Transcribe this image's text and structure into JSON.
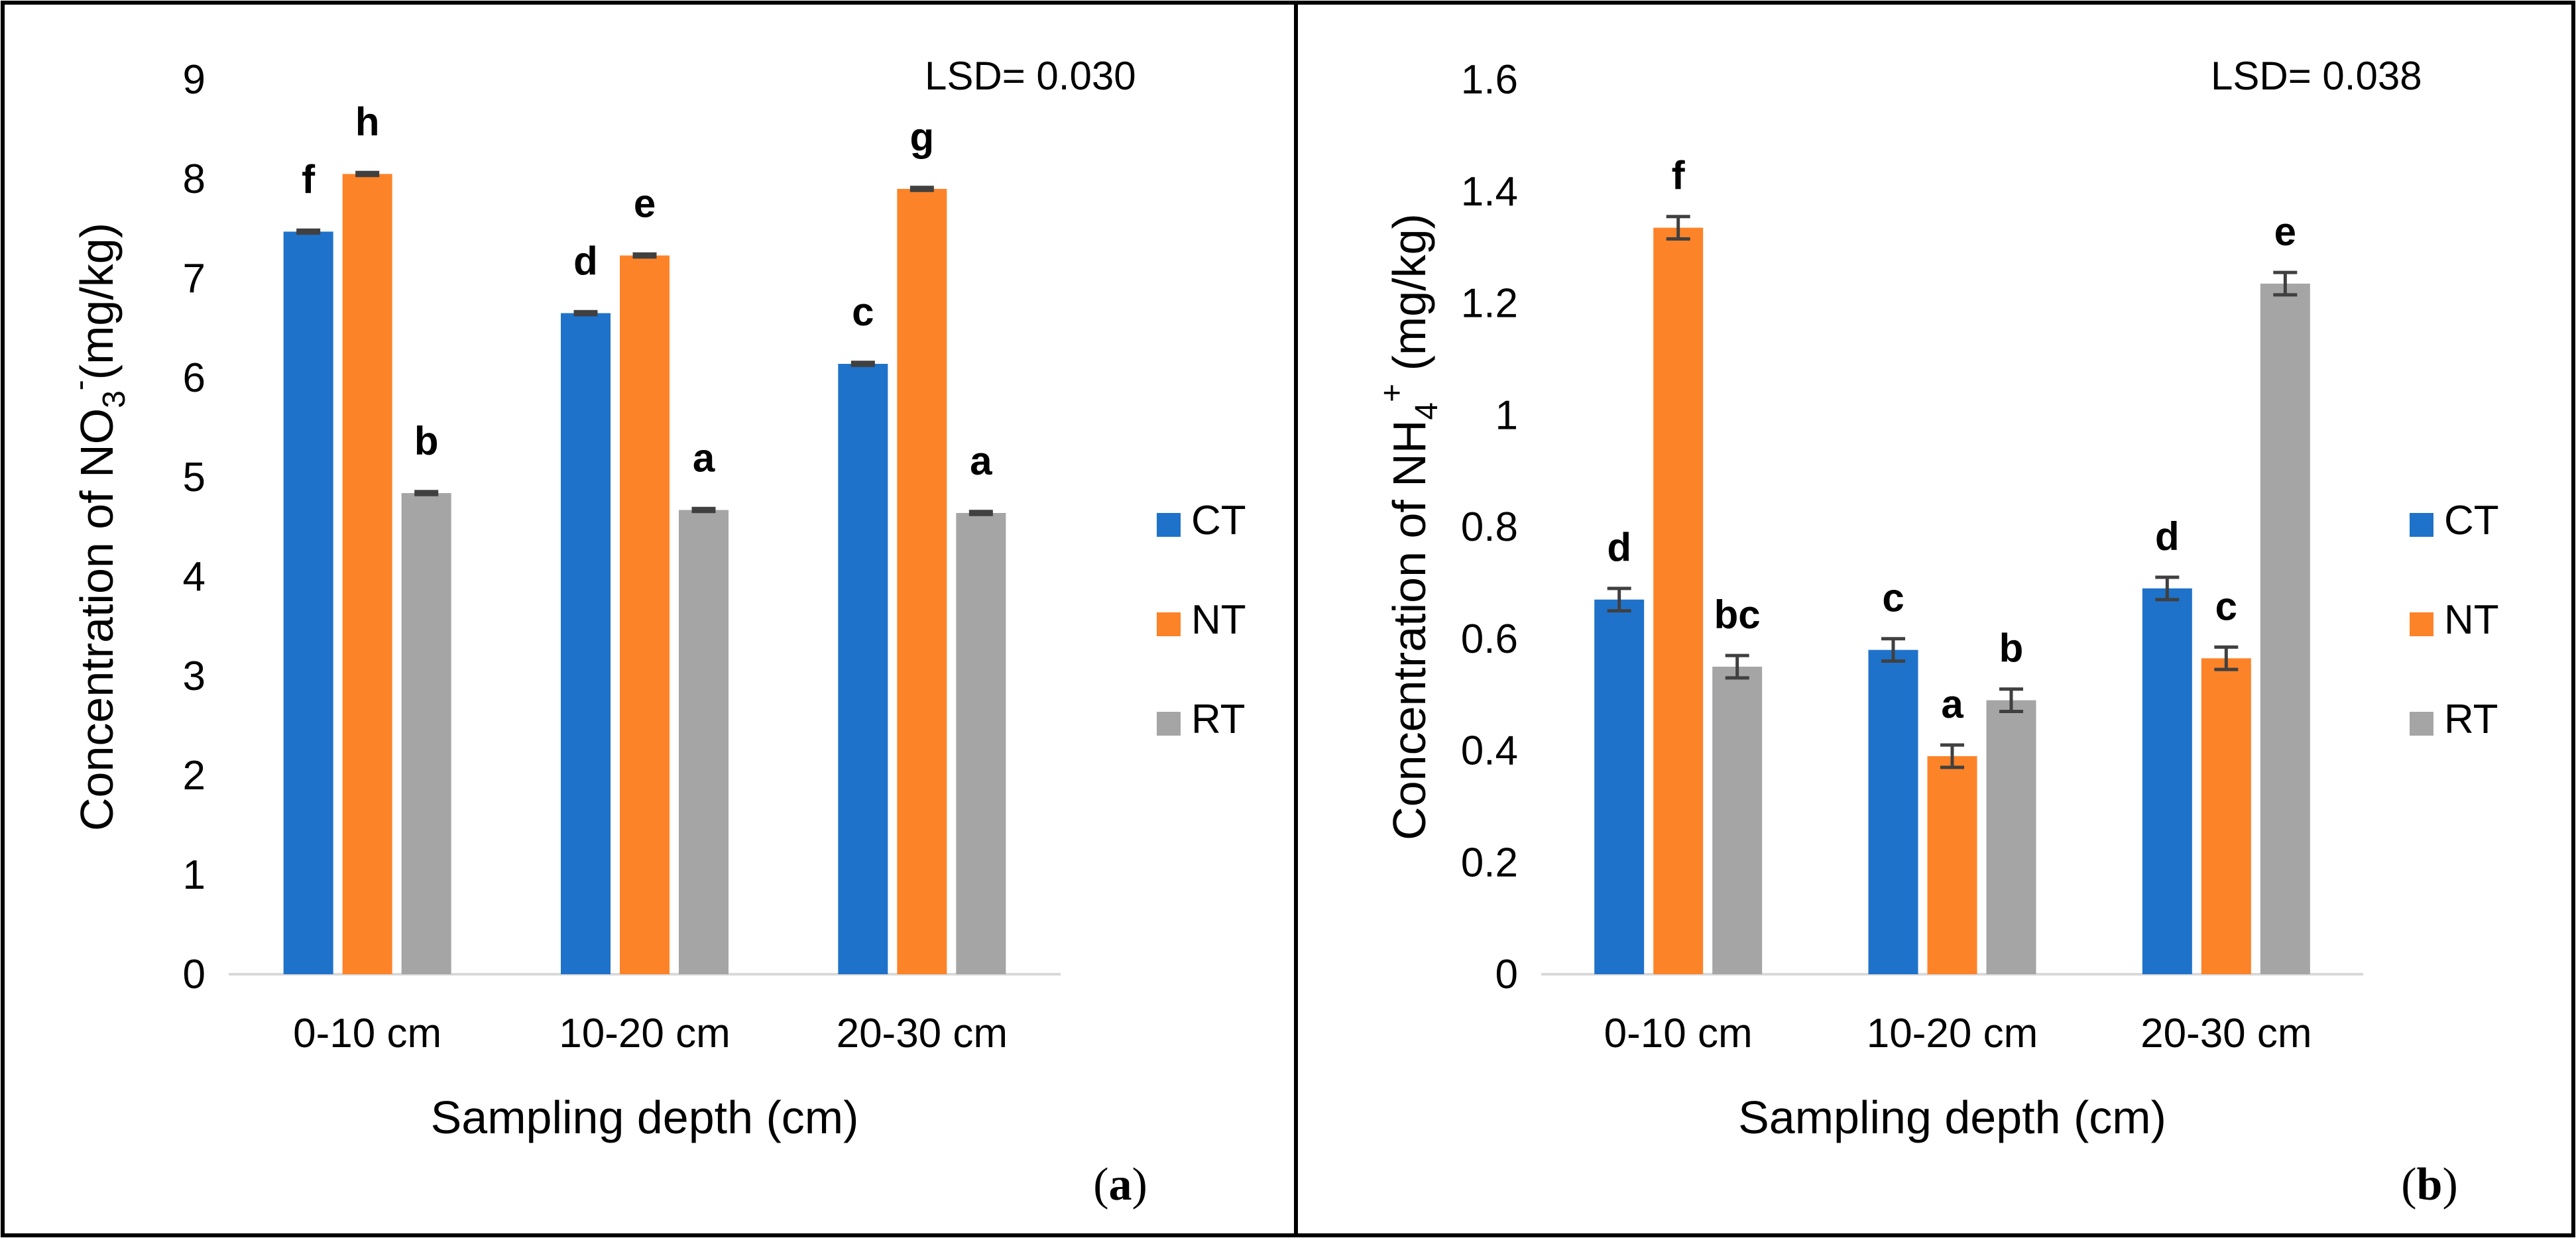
{
  "colors": {
    "CT": "#1f72c9",
    "NT": "#fd8329",
    "RT": "#a5a5a5",
    "errorbar": "#404040",
    "frame": "#000000"
  },
  "chart_data": [
    {
      "type": "bar",
      "panel": "(a)",
      "panel_letter": "a",
      "categories": [
        "0-10 cm",
        "10-20 cm",
        "20-30 cm"
      ],
      "series": [
        {
          "name": "CT",
          "values": [
            7.47,
            6.65,
            6.14
          ],
          "errors": [
            0.015,
            0.015,
            0.015
          ],
          "labels": [
            "f",
            "d",
            "c"
          ]
        },
        {
          "name": "NT",
          "values": [
            8.05,
            7.23,
            7.9
          ],
          "errors": [
            0.015,
            0.015,
            0.015
          ],
          "labels": [
            "h",
            "e",
            "g"
          ]
        },
        {
          "name": "RT",
          "values": [
            4.84,
            4.67,
            4.64
          ],
          "errors": [
            0.015,
            0.015,
            0.015
          ],
          "labels": [
            "b",
            "a",
            "a"
          ]
        }
      ],
      "xlabel": "Sampling depth (cm)",
      "ylabel": {
        "prefix": "Concentration of NO",
        "sub": "3",
        "sup": "-",
        "suffix": "(mg/kg)"
      },
      "ylim": [
        0,
        9
      ],
      "yticks": [
        0,
        1,
        2,
        3,
        4,
        5,
        6,
        7,
        8,
        9
      ],
      "annotation": "LSD= 0.030",
      "legend": [
        "CT",
        "NT",
        "RT"
      ],
      "legend_position": "right"
    },
    {
      "type": "bar",
      "panel": "(b)",
      "panel_letter": "b",
      "categories": [
        "0-10 cm",
        "10-20 cm",
        "20-30 cm"
      ],
      "series": [
        {
          "name": "CT",
          "values": [
            0.67,
            0.58,
            0.69
          ],
          "errors": [
            0.02,
            0.02,
            0.02
          ],
          "labels": [
            "d",
            "c",
            "d"
          ]
        },
        {
          "name": "NT",
          "values": [
            1.335,
            0.39,
            0.565
          ],
          "errors": [
            0.02,
            0.02,
            0.02
          ],
          "labels": [
            "f",
            "a",
            "c"
          ]
        },
        {
          "name": "RT",
          "values": [
            0.55,
            0.49,
            1.235
          ],
          "errors": [
            0.02,
            0.02,
            0.02
          ],
          "labels": [
            "bc",
            "b",
            "e"
          ]
        }
      ],
      "xlabel": "Sampling depth (cm)",
      "ylabel": {
        "prefix": "Concentration of NH",
        "sub": "4",
        "sup": "+",
        "suffix": " (mg/kg)"
      },
      "ylim": [
        0,
        1.6
      ],
      "yticks": [
        0,
        0.2,
        0.4,
        0.6,
        0.8,
        1,
        1.2,
        1.4,
        1.6
      ],
      "annotation": "LSD= 0.038",
      "legend": [
        "CT",
        "NT",
        "RT"
      ],
      "legend_position": "right"
    }
  ]
}
